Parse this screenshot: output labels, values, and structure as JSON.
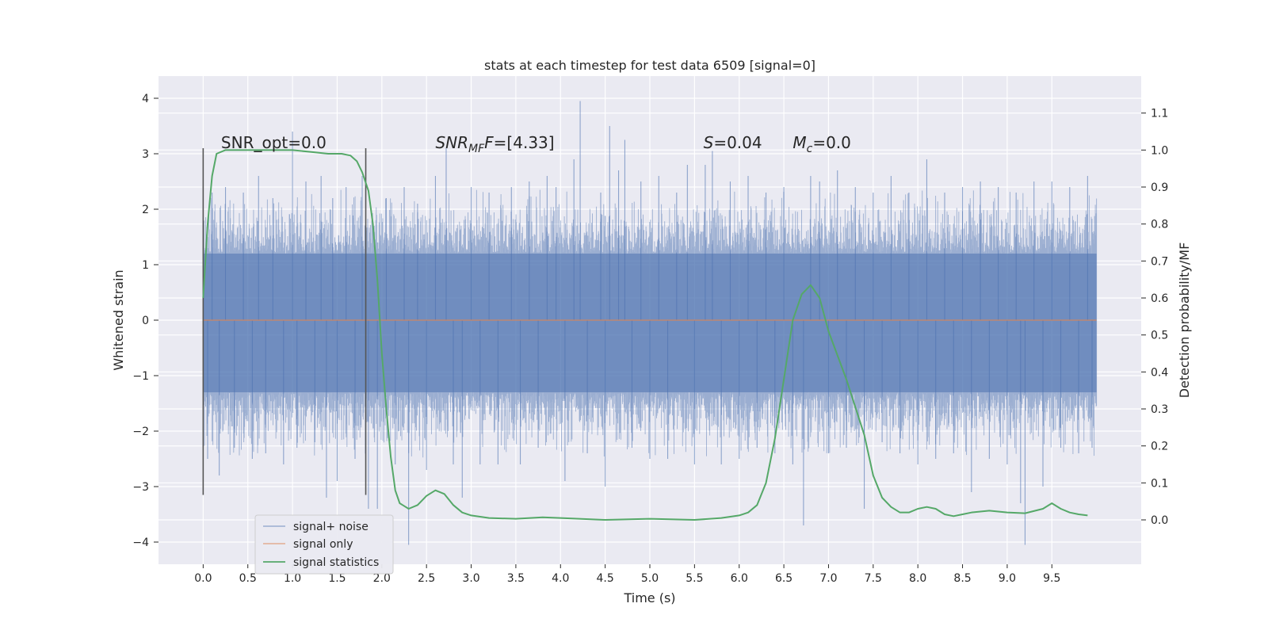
{
  "chart_data": {
    "type": "line",
    "title": "stats at each timestep for test data 6509 [signal=0]",
    "xlabel": "Time (s)",
    "ylabel": "Whitened strain",
    "y2label": "Detection probability/MF",
    "xlim": [
      -0.5,
      10.5
    ],
    "ylim": [
      -4.4,
      4.4
    ],
    "y2lim": [
      -0.12,
      1.2
    ],
    "x_ticks": [
      0.0,
      0.5,
      1.0,
      1.5,
      2.0,
      2.5,
      3.0,
      3.5,
      4.0,
      4.5,
      5.0,
      5.5,
      6.0,
      6.5,
      7.0,
      7.5,
      8.0,
      8.5,
      9.0,
      9.5
    ],
    "y_ticks": [
      -4,
      -3,
      -2,
      -1,
      0,
      1,
      2,
      3,
      4
    ],
    "y2_ticks": [
      0.0,
      0.1,
      0.2,
      0.3,
      0.4,
      0.5,
      0.6,
      0.7,
      0.8,
      0.9,
      1.0,
      1.1
    ],
    "grid": true,
    "legend_position": "lower-left",
    "annotations": [
      {
        "text_plain": "SNR_opt=0.0",
        "x": 0.2,
        "y": 3.2
      },
      {
        "main": "SNR",
        "sub": "MF",
        "rest": "F=[4.33]",
        "x": 2.6,
        "y": 3.2
      },
      {
        "main": "S",
        "rest": "=0.04",
        "x": 5.6,
        "y": 3.2
      },
      {
        "main": "M",
        "sub": "c",
        "rest": "=0.0",
        "x": 6.6,
        "y": 3.2
      }
    ],
    "vlines": [
      {
        "x": 0.0,
        "ymin": -3.15,
        "ymax": 3.1
      },
      {
        "x": 1.82,
        "ymin": -3.15,
        "ymax": 3.1
      }
    ],
    "series": [
      {
        "name": "signal+ noise",
        "color": "#4c72b0",
        "alpha": 0.5,
        "x_start": 0.0,
        "x_end": 10.0,
        "envelope": [
          1.2,
          -1.3
        ],
        "peaks": [
          [
            0.05,
            -2.5
          ],
          [
            0.1,
            2.3
          ],
          [
            0.18,
            -2.8
          ],
          [
            0.25,
            2.4
          ],
          [
            0.35,
            -2.3
          ],
          [
            0.45,
            2.3
          ],
          [
            0.55,
            -2.5
          ],
          [
            0.62,
            2.6
          ],
          [
            0.7,
            -2.4
          ],
          [
            0.78,
            2.2
          ],
          [
            0.9,
            -2.6
          ],
          [
            1.0,
            3.4
          ],
          [
            1.05,
            -2.3
          ],
          [
            1.15,
            2.5
          ],
          [
            1.25,
            -2.2
          ],
          [
            1.32,
            2.6
          ],
          [
            1.38,
            -3.2
          ],
          [
            1.45,
            2.2
          ],
          [
            1.5,
            -2.9
          ],
          [
            1.6,
            2.4
          ],
          [
            1.7,
            -2.5
          ],
          [
            1.78,
            2.6
          ],
          [
            1.85,
            -3.4
          ],
          [
            1.95,
            -3.4
          ],
          [
            2.05,
            2.2
          ],
          [
            2.15,
            -2.6
          ],
          [
            2.25,
            2.4
          ],
          [
            2.3,
            -4.05
          ],
          [
            2.4,
            2.1
          ],
          [
            2.5,
            -2.7
          ],
          [
            2.6,
            2.6
          ],
          [
            2.72,
            3.1
          ],
          [
            2.8,
            -2.6
          ],
          [
            2.9,
            -3.2
          ],
          [
            3.0,
            2.4
          ],
          [
            3.1,
            -2.6
          ],
          [
            3.2,
            2.3
          ],
          [
            3.3,
            -2.6
          ],
          [
            3.45,
            2.4
          ],
          [
            3.55,
            -2.6
          ],
          [
            3.65,
            2.5
          ],
          [
            3.75,
            -2.3
          ],
          [
            3.85,
            2.6
          ],
          [
            3.95,
            2.4
          ],
          [
            4.05,
            -2.9
          ],
          [
            4.15,
            2.9
          ],
          [
            4.22,
            3.95
          ],
          [
            4.3,
            -2.4
          ],
          [
            4.45,
            2.3
          ],
          [
            4.5,
            -3.0
          ],
          [
            4.55,
            3.5
          ],
          [
            4.65,
            2.7
          ],
          [
            4.72,
            3.25
          ],
          [
            4.8,
            -2.3
          ],
          [
            4.9,
            2.5
          ],
          [
            5.0,
            -2.5
          ],
          [
            5.1,
            2.6
          ],
          [
            5.2,
            -2.5
          ],
          [
            5.3,
            2.3
          ],
          [
            5.42,
            2.8
          ],
          [
            5.5,
            -2.6
          ],
          [
            5.62,
            2.8
          ],
          [
            5.7,
            3.05
          ],
          [
            5.8,
            -2.6
          ],
          [
            5.9,
            2.5
          ],
          [
            6.0,
            -2.5
          ],
          [
            6.1,
            2.6
          ],
          [
            6.2,
            -2.3
          ],
          [
            6.3,
            2.3
          ],
          [
            6.4,
            -2.4
          ],
          [
            6.5,
            2.4
          ],
          [
            6.6,
            -2.6
          ],
          [
            6.72,
            -3.7
          ],
          [
            6.8,
            2.6
          ],
          [
            6.9,
            2.5
          ],
          [
            7.0,
            -2.4
          ],
          [
            7.1,
            2.7
          ],
          [
            7.2,
            -2.3
          ],
          [
            7.3,
            2.4
          ],
          [
            7.4,
            -3.4
          ],
          [
            7.5,
            2.3
          ],
          [
            7.6,
            -2.2
          ],
          [
            7.7,
            2.6
          ],
          [
            7.8,
            -2.4
          ],
          [
            7.9,
            2.3
          ],
          [
            8.0,
            -2.6
          ],
          [
            8.1,
            2.9
          ],
          [
            8.2,
            -2.5
          ],
          [
            8.3,
            2.3
          ],
          [
            8.4,
            -2.4
          ],
          [
            8.5,
            2.4
          ],
          [
            8.6,
            -3.1
          ],
          [
            8.7,
            2.5
          ],
          [
            8.8,
            -2.5
          ],
          [
            8.9,
            2.4
          ],
          [
            9.0,
            -2.6
          ],
          [
            9.1,
            2.3
          ],
          [
            9.15,
            -3.3
          ],
          [
            9.2,
            -4.05
          ],
          [
            9.3,
            2.5
          ],
          [
            9.4,
            -3.0
          ],
          [
            9.5,
            2.5
          ],
          [
            9.6,
            -2.3
          ],
          [
            9.7,
            2.4
          ],
          [
            9.8,
            -2.4
          ],
          [
            9.9,
            2.6
          ],
          [
            9.95,
            -2.3
          ]
        ]
      },
      {
        "name": "signal only",
        "color": "#dd8452",
        "x": [
          0.0,
          10.0
        ],
        "y": [
          0.0,
          0.0
        ]
      },
      {
        "name": "signal statistics",
        "color": "#55a868",
        "axis": "y2",
        "x": [
          0.0,
          0.05,
          0.1,
          0.15,
          0.25,
          0.4,
          0.6,
          0.8,
          1.0,
          1.2,
          1.4,
          1.55,
          1.65,
          1.72,
          1.78,
          1.85,
          1.9,
          1.95,
          2.0,
          2.05,
          2.1,
          2.15,
          2.2,
          2.3,
          2.4,
          2.5,
          2.6,
          2.7,
          2.8,
          2.9,
          3.0,
          3.2,
          3.5,
          3.8,
          4.0,
          4.5,
          5.0,
          5.5,
          5.8,
          6.0,
          6.1,
          6.2,
          6.3,
          6.4,
          6.5,
          6.6,
          6.7,
          6.8,
          6.9,
          7.0,
          7.2,
          7.4,
          7.5,
          7.6,
          7.7,
          7.8,
          7.9,
          8.0,
          8.1,
          8.2,
          8.3,
          8.4,
          8.5,
          8.6,
          8.8,
          9.0,
          9.2,
          9.4,
          9.5,
          9.6,
          9.7,
          9.8,
          9.9
        ],
        "y": [
          0.6,
          0.8,
          0.93,
          0.99,
          1.0,
          1.0,
          1.0,
          1.0,
          1.0,
          0.995,
          0.99,
          0.99,
          0.985,
          0.97,
          0.94,
          0.89,
          0.8,
          0.65,
          0.45,
          0.3,
          0.17,
          0.08,
          0.045,
          0.03,
          0.04,
          0.065,
          0.08,
          0.07,
          0.04,
          0.02,
          0.012,
          0.005,
          0.003,
          0.007,
          0.005,
          0.0,
          0.003,
          0.0,
          0.005,
          0.012,
          0.02,
          0.04,
          0.1,
          0.22,
          0.38,
          0.54,
          0.61,
          0.635,
          0.6,
          0.51,
          0.38,
          0.23,
          0.12,
          0.06,
          0.035,
          0.02,
          0.02,
          0.03,
          0.035,
          0.03,
          0.015,
          0.01,
          0.015,
          0.02,
          0.025,
          0.02,
          0.018,
          0.03,
          0.045,
          0.03,
          0.02,
          0.015,
          0.012
        ]
      }
    ]
  }
}
